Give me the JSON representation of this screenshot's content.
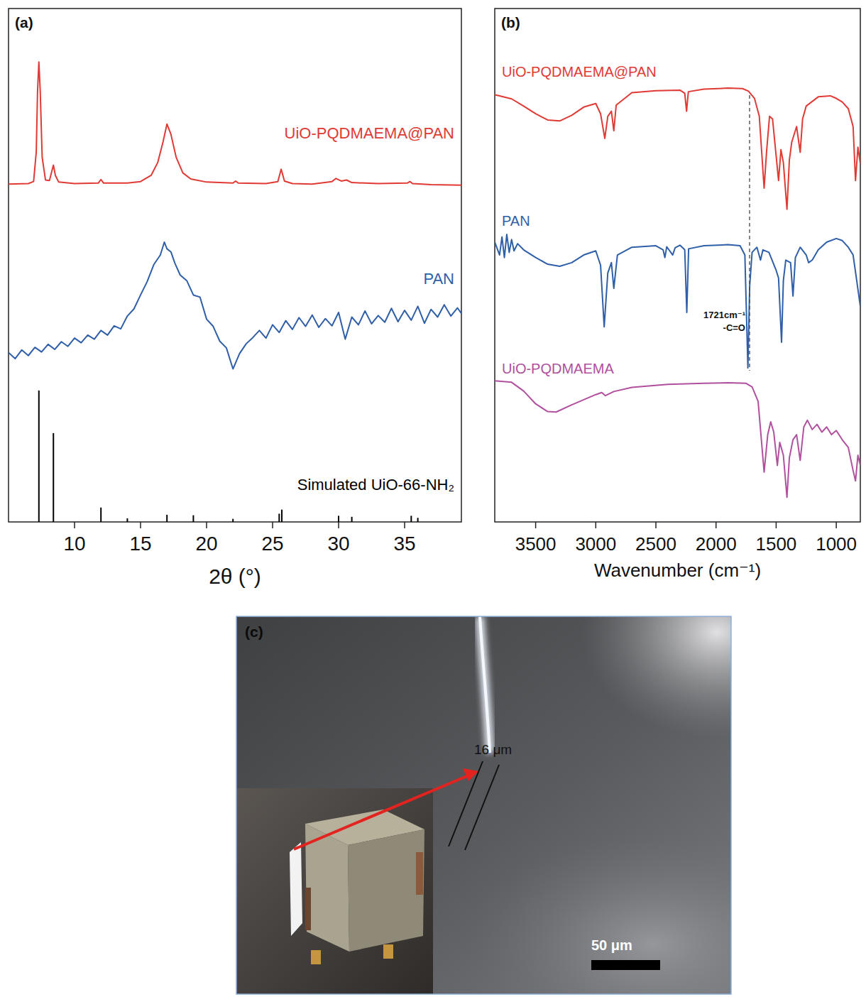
{
  "chart_data": [
    {
      "type": "line",
      "label": "(a)",
      "x_label": "2θ (°)",
      "xlim": [
        5,
        39.3
      ],
      "xticks": [
        10,
        15,
        20,
        25,
        30,
        35
      ],
      "ylim": [
        0,
        100
      ],
      "tick_labels": "x",
      "series": [
        {
          "name": "UiO-PQDMAEMA@PAN",
          "color": "#e03a35",
          "type": "line",
          "x": [
            5,
            6.5,
            6.9,
            7.1,
            7.2,
            7.3,
            7.4,
            7.55,
            7.8,
            8.1,
            8.25,
            8.4,
            8.55,
            8.8,
            10,
            11.8,
            12,
            12.2,
            14,
            15,
            15.8,
            16.3,
            16.7,
            17,
            17.3,
            17.7,
            18.2,
            18.8,
            20,
            22,
            22.2,
            22.4,
            24.5,
            25.4,
            25.65,
            25.9,
            26.5,
            28,
            29.5,
            29.8,
            30.2,
            30.6,
            31,
            33,
            35.2,
            35.4,
            35.6,
            37,
            39.3
          ],
          "values": [
            65.8,
            65.9,
            66.3,
            72,
            84,
            89.6,
            84,
            71,
            66.6,
            66.5,
            68,
            69.5,
            67.5,
            66.2,
            65.9,
            66,
            66.7,
            66,
            66,
            66.3,
            67.5,
            70,
            74,
            77.5,
            75.5,
            71,
            68,
            66.8,
            66.2,
            66,
            66.4,
            66,
            65.9,
            66.3,
            68.7,
            66.4,
            65.9,
            65.8,
            66.3,
            66.9,
            66.4,
            66.6,
            66.1,
            65.9,
            66,
            66.3,
            65.9,
            65.7,
            65.6
          ]
        },
        {
          "name": "PAN",
          "color": "#2f5fa8",
          "type": "line",
          "x": [
            5,
            5.5,
            6,
            6.5,
            7,
            7.5,
            8,
            8.5,
            9,
            9.5,
            10,
            10.5,
            11,
            11.5,
            12,
            12.5,
            13,
            13.5,
            14,
            14.5,
            15,
            15.5,
            16,
            16.5,
            16.8,
            17,
            17.3,
            17.6,
            18,
            18.5,
            19,
            19.5,
            20,
            20.5,
            21,
            21.5,
            22,
            22.5,
            23,
            23.5,
            24,
            24.5,
            25,
            25.5,
            26,
            26.5,
            27,
            27.5,
            28,
            28.5,
            29,
            29.5,
            30,
            30.5,
            31,
            31.5,
            32,
            32.5,
            33,
            33.5,
            34,
            34.5,
            35,
            35.5,
            36,
            36.5,
            37,
            37.5,
            38,
            38.5,
            39,
            39.3
          ],
          "values": [
            33.0,
            31.8,
            33.5,
            32.4,
            34.0,
            33.1,
            34.6,
            33.6,
            35.1,
            34.2,
            35.8,
            34.9,
            36.4,
            35.6,
            37.3,
            36.4,
            38.2,
            37.6,
            40.1,
            41.5,
            44.2,
            46.8,
            50.1,
            52.0,
            54.5,
            53.2,
            52.6,
            50.4,
            48.1,
            47.0,
            44.2,
            43.8,
            39.5,
            38.1,
            35.2,
            33.9,
            29.8,
            32.8,
            34.7,
            35.9,
            37.3,
            35.8,
            38.4,
            36.9,
            39.2,
            37.5,
            39.8,
            38.1,
            40.3,
            37.9,
            39.6,
            38.2,
            40.8,
            35.6,
            39.9,
            38.4,
            41.1,
            38.6,
            40.2,
            38.9,
            41.6,
            39.0,
            41.2,
            39.3,
            42.0,
            38.7,
            41.4,
            39.9,
            42.3,
            40.1,
            41.7,
            40.6
          ]
        },
        {
          "name": "Simulated UiO-66-NH₂",
          "color": "#000000",
          "type": "stick",
          "x": [
            7.3,
            8.4,
            12,
            14,
            17,
            19,
            22,
            25.5,
            25.7,
            30,
            31,
            35.5,
            36
          ],
          "values": [
            25.6,
            17.3,
            2.8,
            0.7,
            1.4,
            1.3,
            0.6,
            1.6,
            2.4,
            1.2,
            1.0,
            1.2,
            0.8
          ]
        }
      ]
    },
    {
      "type": "line",
      "label": "(b)",
      "x_label": "Wavenumber (cm⁻¹)",
      "xlim": [
        3840,
        800
      ],
      "xticks": [
        3500,
        3000,
        2500,
        2000,
        1500,
        1000
      ],
      "ylim": [
        0,
        100
      ],
      "tick_labels": "x",
      "annotations": [
        {
          "x": 1721,
          "lines": [
            "1721cm⁻¹",
            "-C=O"
          ]
        }
      ],
      "series": [
        {
          "name": "UiO-PQDMAEMA@PAN",
          "color": "#e03a35",
          "type": "line",
          "x": [
            3840,
            3800,
            3700,
            3600,
            3500,
            3400,
            3300,
            3200,
            3100,
            3000,
            2960,
            2925,
            2900,
            2870,
            2850,
            2830,
            2700,
            2500,
            2300,
            2260,
            2245,
            2230,
            2100,
            1900,
            1780,
            1730,
            1680,
            1640,
            1600,
            1580,
            1555,
            1530,
            1480,
            1460,
            1440,
            1410,
            1390,
            1370,
            1330,
            1300,
            1280,
            1250,
            1150,
            1050,
            1000,
            950,
            900,
            860,
            840,
            820,
            800
          ],
          "values": [
            83.2,
            83.0,
            82.4,
            81.0,
            79.5,
            78.3,
            78.1,
            79.2,
            80.8,
            81.5,
            79.5,
            74.7,
            79.0,
            80.0,
            76.2,
            81.2,
            83.6,
            84.0,
            84.1,
            83.5,
            80.0,
            83.8,
            84.3,
            84.5,
            84.4,
            83.9,
            82.5,
            79.0,
            65.0,
            72.0,
            79.0,
            78.5,
            66.5,
            72.5,
            70.0,
            60.9,
            70.5,
            74.0,
            77.0,
            72.0,
            78.5,
            81.0,
            82.8,
            83.0,
            82.5,
            81.8,
            80.5,
            77.0,
            66.5,
            73.0,
            69.8
          ]
        },
        {
          "name": "PAN",
          "color": "#2f5fa8",
          "type": "line",
          "x": [
            3840,
            3800,
            3780,
            3760,
            3740,
            3720,
            3700,
            3680,
            3650,
            3600,
            3500,
            3400,
            3300,
            3200,
            3100,
            3000,
            2960,
            2930,
            2900,
            2870,
            2850,
            2820,
            2700,
            2500,
            2440,
            2425,
            2410,
            2360,
            2340,
            2300,
            2260,
            2243,
            2228,
            2100,
            1900,
            1800,
            1760,
            1735,
            1720,
            1700,
            1660,
            1630,
            1610,
            1560,
            1500,
            1480,
            1455,
            1440,
            1420,
            1380,
            1360,
            1340,
            1300,
            1250,
            1230,
            1200,
            1150,
            1080,
            1000,
            950,
            900,
            860,
            830,
            800
          ],
          "values": [
            54.5,
            52.0,
            55.5,
            51.5,
            56.0,
            52.5,
            55.0,
            52.8,
            54.2,
            53.0,
            51.5,
            50.2,
            49.8,
            50.5,
            52.0,
            52.8,
            50.0,
            38.0,
            48.5,
            50.5,
            45.5,
            52.0,
            53.5,
            53.8,
            53.0,
            51.5,
            53.6,
            52.0,
            53.4,
            53.9,
            53.0,
            40.8,
            53.2,
            53.8,
            54.0,
            53.8,
            52.0,
            30.0,
            46.0,
            52.5,
            53.5,
            51.0,
            53.0,
            52.5,
            49.0,
            47.5,
            35.0,
            47.0,
            51.0,
            50.5,
            44.0,
            51.5,
            53.5,
            52.0,
            50.5,
            51.0,
            53.0,
            54.5,
            55.2,
            54.8,
            53.5,
            52.0,
            47.0,
            42.0
          ]
        },
        {
          "name": "UiO-PQDMAEMA",
          "color": "#b0509e",
          "type": "line",
          "x": [
            3840,
            3700,
            3600,
            3500,
            3400,
            3330,
            3200,
            3000,
            2950,
            2920,
            2850,
            2700,
            2400,
            2100,
            1900,
            1750,
            1700,
            1650,
            1600,
            1570,
            1545,
            1520,
            1490,
            1470,
            1440,
            1410,
            1390,
            1360,
            1330,
            1300,
            1270,
            1240,
            1200,
            1160,
            1120,
            1080,
            1040,
            1000,
            950,
            900,
            860,
            840,
            820,
            800
          ],
          "values": [
            27.5,
            27.2,
            25.5,
            23.0,
            21.5,
            21.4,
            22.8,
            24.8,
            25.2,
            24.6,
            25.4,
            26.2,
            26.8,
            27.0,
            27.1,
            27.0,
            26.3,
            23.5,
            9.7,
            17.0,
            19.5,
            17.5,
            11.0,
            15.5,
            13.0,
            4.8,
            12.5,
            16.0,
            17.0,
            12.0,
            18.5,
            19.8,
            18.0,
            19.0,
            17.5,
            18.5,
            17.0,
            17.8,
            16.0,
            14.5,
            10.0,
            8.0,
            13.0,
            11.0
          ]
        }
      ]
    }
  ],
  "image": {
    "label": "(c)",
    "annotation": "16 μm",
    "scale_bar": "50 μm"
  }
}
